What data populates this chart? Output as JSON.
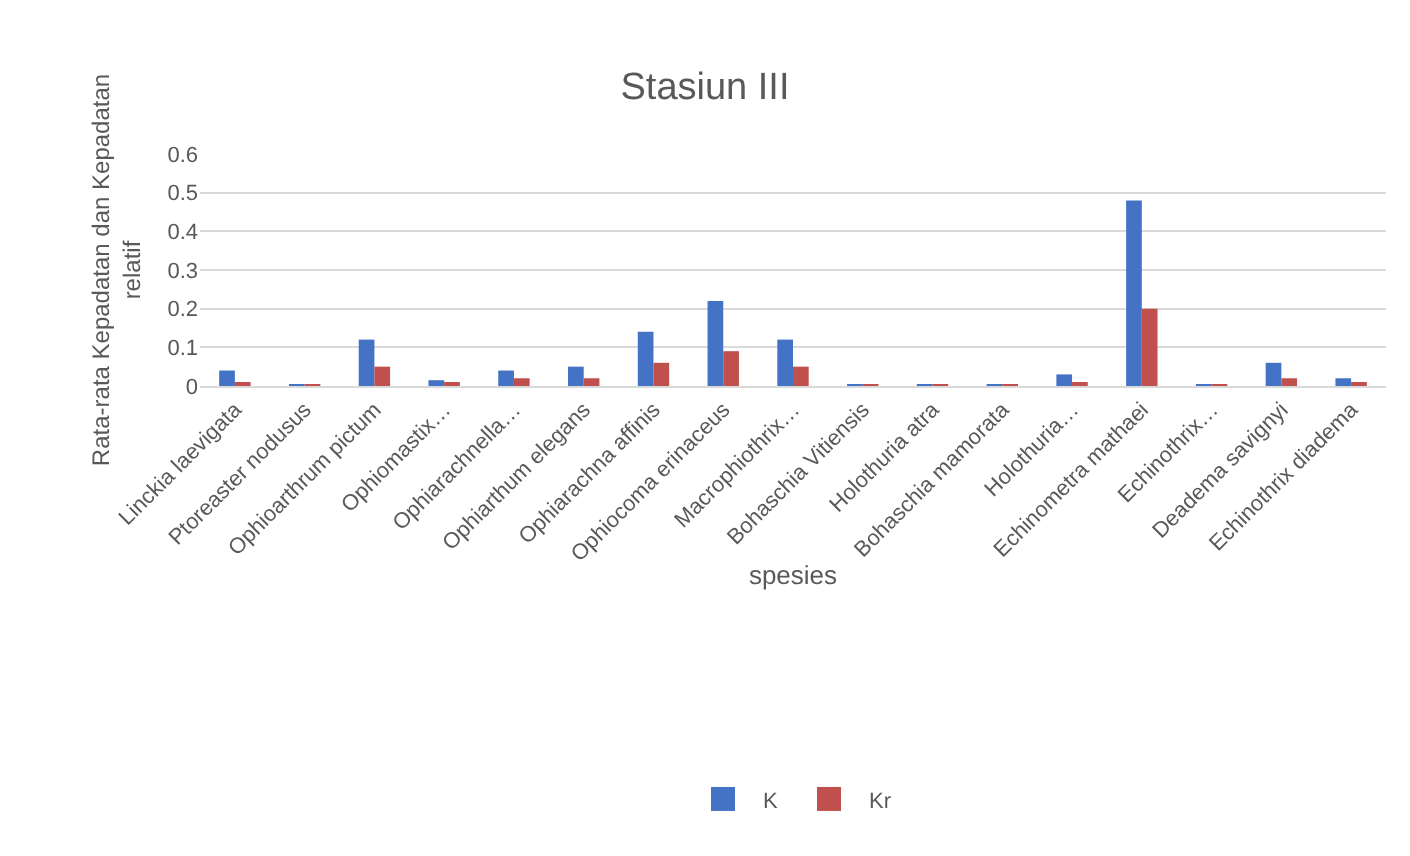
{
  "chart_data": {
    "type": "bar",
    "title": "Stasiun III",
    "xlabel": "spesies",
    "ylabel": "Rata-rata Kepadatan dan Kepadatan relatif",
    "categories": [
      "Linckia laevigata",
      "Ptoreaster nodusus",
      "Ophioarthrum pictum",
      "Ophiomastix…",
      "Ophiarachnella…",
      "Ophiarthum elegans",
      "Ophiarachna affinis",
      "Ophiocoma erinaceus",
      "Macrophiothrix…",
      "Bohaschia Vitiensis",
      "Holothuria atra",
      "Bohaschia mamorata",
      "Holothuria…",
      "Echinometra mathaei",
      "Echinothrix…",
      "Deadema savignyi",
      "Echinothrix diadema"
    ],
    "series": [
      {
        "name": "K",
        "color": "#4472c4",
        "values": [
          0.04,
          0.005,
          0.12,
          0.015,
          0.04,
          0.05,
          0.14,
          0.22,
          0.12,
          0.003,
          0.005,
          0.005,
          0.03,
          0.48,
          0.005,
          0.06,
          0.02
        ]
      },
      {
        "name": "Kr",
        "color": "#c0504d",
        "values": [
          0.01,
          0.003,
          0.05,
          0.007,
          0.02,
          0.02,
          0.06,
          0.09,
          0.05,
          0.001,
          0.002,
          0.002,
          0.01,
          0.2,
          0.002,
          0.02,
          0.01
        ]
      }
    ],
    "ylim": [
      0,
      0.6
    ],
    "yticks": [
      0,
      0.1,
      0.2,
      0.3,
      0.4,
      0.5,
      0.6
    ],
    "grid": "y",
    "legend": "bottom"
  }
}
